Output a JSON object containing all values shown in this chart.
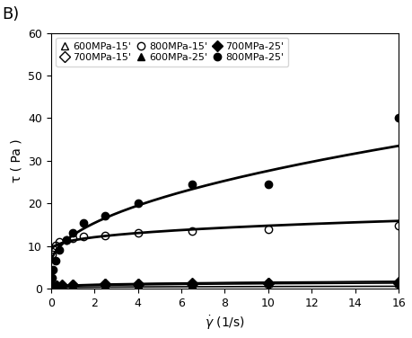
{
  "title_label": "B)",
  "xlabel": "$\\dot{\\gamma}$ (1/s)",
  "ylabel": "τ ( Pa )",
  "xlim": [
    0,
    16
  ],
  "ylim": [
    0,
    60
  ],
  "xticks": [
    0,
    2,
    4,
    6,
    8,
    10,
    12,
    14,
    16
  ],
  "yticks": [
    0,
    10,
    20,
    30,
    40,
    50,
    60
  ],
  "scatter_series": [
    {
      "label": "600MPa-15'",
      "marker": "^",
      "filled": false,
      "x": [
        0.05,
        0.1,
        0.25,
        0.5,
        1.0,
        2.5,
        4.0,
        6.5,
        10.0,
        16.0
      ],
      "y": [
        0.3,
        0.4,
        0.5,
        0.6,
        0.7,
        0.9,
        1.0,
        1.1,
        1.2,
        1.3
      ]
    },
    {
      "label": "700MPa-15'",
      "marker": "D",
      "filled": false,
      "x": [
        0.05,
        0.1,
        0.25,
        0.5,
        1.0,
        2.5,
        4.0,
        6.5,
        10.0,
        16.0
      ],
      "y": [
        0.4,
        0.5,
        0.6,
        0.7,
        0.8,
        1.0,
        1.1,
        1.2,
        1.3,
        1.5
      ]
    },
    {
      "label": "800MPa-15'",
      "marker": "o",
      "filled": false,
      "x": [
        0.05,
        0.1,
        0.2,
        0.4,
        0.7,
        1.0,
        1.5,
        2.5,
        4.0,
        6.5,
        10.0,
        16.0
      ],
      "y": [
        8.0,
        9.2,
        10.2,
        11.0,
        11.5,
        11.8,
        12.2,
        12.5,
        13.0,
        13.5,
        14.0,
        14.8
      ]
    },
    {
      "label": "600MPa-25'",
      "marker": "^",
      "filled": true,
      "x": [
        0.05,
        0.1,
        0.25,
        0.5,
        1.0,
        2.5,
        4.0,
        6.5,
        10.0,
        16.0
      ],
      "y": [
        0.2,
        0.25,
        0.3,
        0.35,
        0.35,
        0.4,
        0.4,
        0.35,
        0.3,
        0.25
      ]
    },
    {
      "label": "700MPa-25'",
      "marker": "D",
      "filled": true,
      "x": [
        0.05,
        0.1,
        0.25,
        0.5,
        1.0,
        2.5,
        4.0,
        6.5,
        10.0,
        16.0
      ],
      "y": [
        0.5,
        0.6,
        0.7,
        0.8,
        0.9,
        1.0,
        1.1,
        1.1,
        1.2,
        1.3
      ]
    },
    {
      "label": "800MPa-25'",
      "marker": "o",
      "filled": true,
      "x": [
        0.05,
        0.1,
        0.2,
        0.4,
        0.7,
        1.0,
        1.5,
        2.5,
        4.0,
        6.5,
        10.0,
        16.0
      ],
      "y": [
        2.5,
        4.5,
        6.5,
        9.0,
        11.5,
        13.0,
        15.5,
        17.0,
        20.0,
        24.5,
        24.5,
        40.0
      ]
    }
  ],
  "fit_curves": [
    {
      "tau0": 0.0,
      "K": 0.6,
      "n": 0.28,
      "color": "black",
      "lw": 1.2
    },
    {
      "tau0": 0.0,
      "K": 0.75,
      "n": 0.28,
      "color": "black",
      "lw": 1.2
    },
    {
      "tau0": 8.5,
      "K": 2.8,
      "n": 0.35,
      "color": "black",
      "lw": 2.0
    },
    {
      "tau0": 0.0,
      "K": 0.3,
      "n": 0.22,
      "color": "black",
      "lw": 1.2
    },
    {
      "tau0": 0.0,
      "K": 0.85,
      "n": 0.25,
      "color": "black",
      "lw": 1.2
    },
    {
      "tau0": 5.5,
      "K": 7.0,
      "n": 0.5,
      "color": "black",
      "lw": 2.0
    }
  ],
  "background_color": "#ffffff",
  "fontsize": 10,
  "marker_size": 6
}
